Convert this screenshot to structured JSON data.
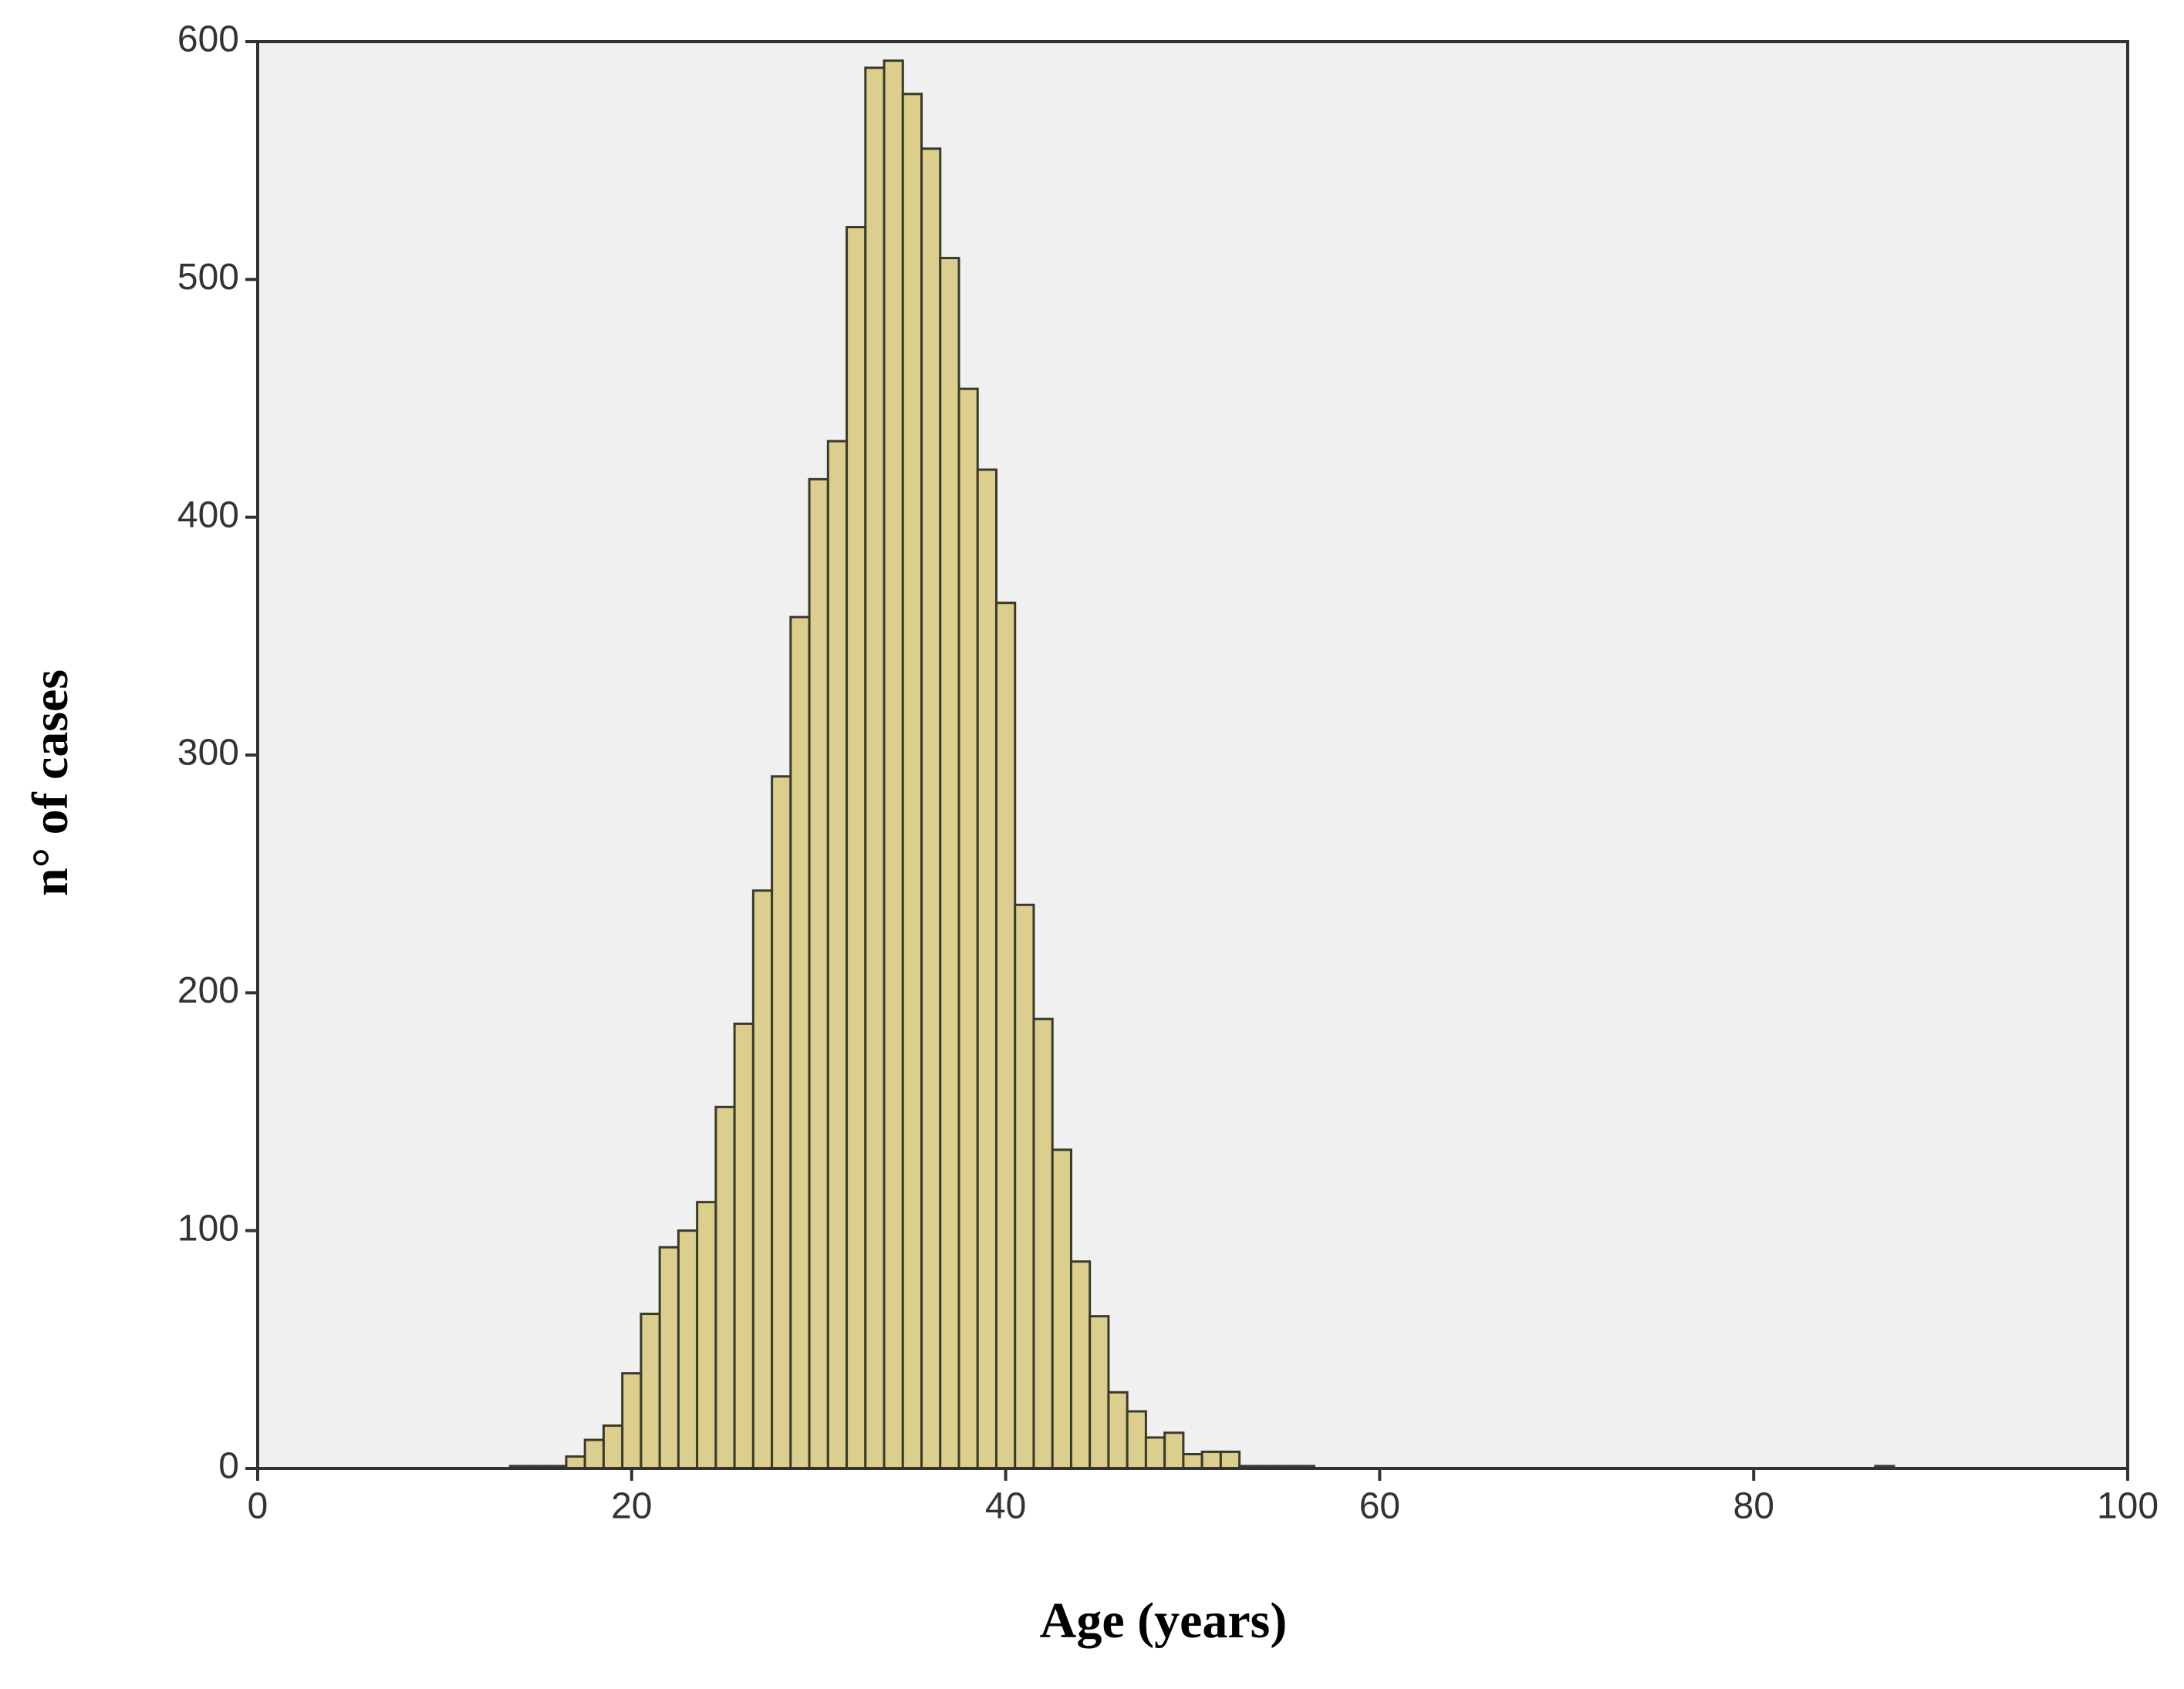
{
  "chart_data": {
    "type": "histogram",
    "x_label": "Age (years)",
    "y_label": "n° of cases",
    "bins": [
      13.5,
      14.5,
      15.5,
      16.5,
      17.5,
      18.5,
      19.5,
      20.5,
      21.5,
      22.5,
      23.5,
      24.5,
      25.5,
      26.5,
      27.5,
      28.5,
      29.5,
      30.5,
      31.5,
      32.5,
      33.5,
      34.5,
      35.5,
      36.5,
      37.5,
      38.5,
      39.5,
      40.5,
      41.5,
      42.5,
      43.5,
      44.5,
      45.5,
      46.5,
      47.5,
      48.5,
      49.5,
      50.5,
      51.5,
      52.5,
      53.5,
      54.5,
      55.5,
      56.5,
      57.5,
      58.5,
      59.5,
      60.5,
      61.5,
      62.5,
      63.5,
      64.5,
      65.5,
      66.5,
      67.5,
      68.5,
      69.5,
      70.5,
      71.5,
      72.5,
      73.5,
      74.5,
      75.5,
      76.5,
      77.5,
      78.5,
      79.5,
      80.5,
      81.5,
      82.5,
      83.5,
      84.5,
      85.5,
      86.5,
      87.5
    ],
    "values": [
      1,
      1,
      1,
      5,
      12,
      18,
      40,
      65,
      93,
      100,
      112,
      152,
      187,
      243,
      291,
      358,
      416,
      432,
      522,
      589,
      592,
      578,
      555,
      509,
      454,
      420,
      364,
      237,
      189,
      134,
      87,
      64,
      32,
      24,
      13,
      15,
      6,
      7,
      7,
      1,
      1,
      1,
      1,
      0,
      0,
      0,
      0,
      0,
      0,
      0,
      0,
      0,
      0,
      0,
      0,
      0,
      0,
      0,
      0,
      0,
      0,
      0,
      0,
      0,
      0,
      0,
      0,
      0,
      0,
      0,
      0,
      0,
      0,
      1
    ],
    "color": "#dccf8e",
    "xlim": [
      0,
      100
    ],
    "xticks": [
      0,
      20,
      40,
      60,
      80,
      100
    ],
    "ylim": [
      0,
      600
    ],
    "yticks": [
      0,
      100,
      200,
      300,
      400,
      500,
      600
    ]
  }
}
